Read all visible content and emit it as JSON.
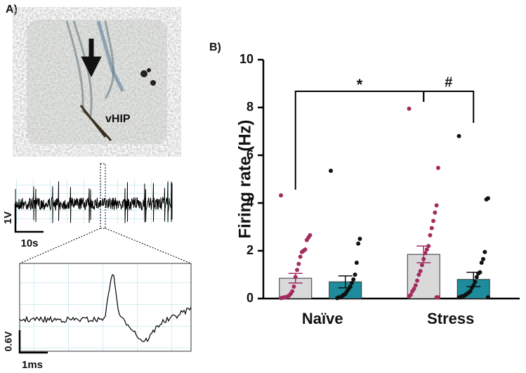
{
  "panel_a": {
    "label": "A)",
    "image_label": "vHIP",
    "scale_bars": {
      "trace_voltage": "1V",
      "trace_time": "10s",
      "zoom_voltage": "0.6V",
      "zoom_time": "1ms"
    }
  },
  "chart_data": {
    "type": "bar",
    "panel_label": "B)",
    "y_label": "Firing rate (Hz)",
    "categories": [
      "Naïve",
      "Stress"
    ],
    "series": [
      {
        "color": "#d9d9d9",
        "point_color": "#a32c5e",
        "values": [
          0.85,
          1.85
        ],
        "errors": [
          0.2,
          0.35
        ],
        "points": [
          [
            4.32,
            2.65,
            2.55,
            2.45,
            2.05,
            2.0,
            1.95,
            1.75,
            1.45,
            1.2,
            0.9,
            0.5,
            0.3,
            0.2,
            0.12,
            0.08,
            0.05,
            0.05,
            0.03,
            0.02
          ],
          [
            7.95,
            5.47,
            3.9,
            3.6,
            3.25,
            2.95,
            2.65,
            2.2,
            2.05,
            1.9,
            1.65,
            1.4,
            1.15,
            1.0,
            0.75,
            0.55,
            0.4,
            0.3,
            0.15,
            0.1,
            0.05,
            0.05
          ]
        ]
      },
      {
        "color": "#1e8c9c",
        "point_color": "#111111",
        "values": [
          0.7,
          0.8
        ],
        "errors": [
          0.25,
          0.3
        ],
        "points": [
          [
            5.35,
            2.5,
            2.3,
            1.5,
            1.0,
            0.8,
            0.65,
            0.5,
            0.4,
            0.3,
            0.2,
            0.15,
            0.1,
            0.05,
            0.05,
            0.02
          ],
          [
            6.8,
            4.2,
            4.15,
            1.95,
            1.65,
            1.5,
            1.1,
            1.05,
            0.9,
            0.7,
            0.55,
            0.45,
            0.3,
            0.25,
            0.2,
            0.15,
            0.1,
            0.1,
            0.05,
            0.05,
            0.05
          ]
        ]
      }
    ],
    "ylim": [
      0,
      10
    ],
    "yticks": [
      0,
      2,
      4,
      6,
      8,
      10
    ],
    "annotations": [
      "*",
      "#"
    ]
  }
}
